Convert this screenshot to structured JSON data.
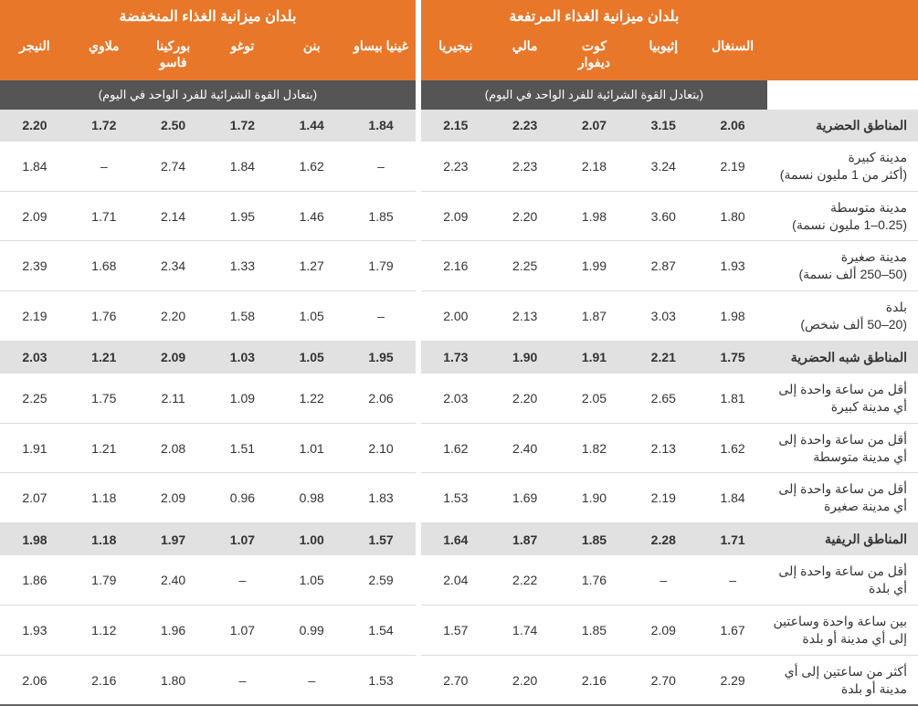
{
  "header": {
    "group_high": "بلدان ميزانية الغذاء المرتفعة",
    "group_low": "بلدان ميزانية الغذاء المنخفضة",
    "unit_label": "(بتعادل القوة الشرائية للفرد الواحد في اليوم)",
    "countries_high": [
      "السنغال",
      "إثيوبيا",
      "كوت ديفوار",
      "مالي",
      "نيجيريا"
    ],
    "countries_low": [
      "غينيا بيساو",
      "بنن",
      "توغو",
      "بوركينا فاسو",
      "ملاوي",
      "النيجر"
    ]
  },
  "sections": [
    {
      "label": "المناطق الحضرية",
      "high": [
        "2.06",
        "3.15",
        "2.07",
        "2.23",
        "2.15"
      ],
      "low": [
        "1.84",
        "1.44",
        "1.72",
        "2.50",
        "1.72",
        "2.20"
      ],
      "rows": [
        {
          "label": "مدينة كبيرة\n(أكثر من 1 مليون نسمة)",
          "high": [
            "2.19",
            "3.24",
            "2.18",
            "2.23",
            "2.23"
          ],
          "low": [
            "–",
            "1.62",
            "1.84",
            "2.74",
            "–",
            "1.84"
          ]
        },
        {
          "label": "مدينة متوسطة\n(0.25–1 مليون نسمة)",
          "high": [
            "1.80",
            "3.60",
            "1.98",
            "2.20",
            "2.09"
          ],
          "low": [
            "1.85",
            "1.46",
            "1.95",
            "2.14",
            "1.71",
            "2.09"
          ]
        },
        {
          "label": "مدينة صغيرة\n(50–250 ألف نسمة)",
          "high": [
            "1.93",
            "2.87",
            "1.99",
            "2.25",
            "2.16"
          ],
          "low": [
            "1.79",
            "1.27",
            "1.33",
            "2.34",
            "1.68",
            "2.39"
          ]
        },
        {
          "label": "بلدة\n(20–50 ألف شخص)",
          "high": [
            "1.98",
            "3.03",
            "1.87",
            "2.13",
            "2.00"
          ],
          "low": [
            "–",
            "1.05",
            "1.58",
            "2.20",
            "1.76",
            "2.19"
          ]
        }
      ]
    },
    {
      "label": "المناطق شبه الحضرية",
      "high": [
        "1.75",
        "2.21",
        "1.91",
        "1.90",
        "1.73"
      ],
      "low": [
        "1.95",
        "1.05",
        "1.03",
        "2.09",
        "1.21",
        "2.03"
      ],
      "rows": [
        {
          "label": "أقل من ساعة واحدة إلى أي مدينة كبيرة",
          "high": [
            "1.81",
            "2.65",
            "2.05",
            "2.20",
            "2.03"
          ],
          "low": [
            "2.06",
            "1.22",
            "1.09",
            "2.11",
            "1.75",
            "2.25"
          ]
        },
        {
          "label": "أقل من ساعة واحدة إلى أي مدينة متوسطة",
          "high": [
            "1.62",
            "2.13",
            "1.82",
            "2.40",
            "1.62"
          ],
          "low": [
            "2.10",
            "1.01",
            "1.51",
            "2.08",
            "1.21",
            "1.91"
          ]
        },
        {
          "label": "أقل من ساعة واحدة إلى أي مدينة صغيرة",
          "high": [
            "1.84",
            "2.19",
            "1.90",
            "1.69",
            "1.53"
          ],
          "low": [
            "1.83",
            "0.98",
            "0.96",
            "2.09",
            "1.18",
            "2.07"
          ]
        }
      ]
    },
    {
      "label": "المناطق الريفية",
      "high": [
        "1.71",
        "2.28",
        "1.85",
        "1.87",
        "1.64"
      ],
      "low": [
        "1.57",
        "1.00",
        "1.07",
        "1.97",
        "1.18",
        "1.98"
      ],
      "rows": [
        {
          "label": "أقل من ساعة واحدة إلى أي بلدة",
          "high": [
            "–",
            "–",
            "1.76",
            "2.22",
            "2.04"
          ],
          "low": [
            "2.59",
            "1.05",
            "–",
            "2.40",
            "1.79",
            "1.86"
          ]
        },
        {
          "label": "بين ساعة واحدة وساعتين إلى أي مدينة أو بلدة",
          "high": [
            "1.67",
            "2.09",
            "1.85",
            "1.74",
            "1.57"
          ],
          "low": [
            "1.54",
            "0.99",
            "1.07",
            "1.96",
            "1.12",
            "1.93"
          ]
        },
        {
          "label": "أكثر من ساعتين إلى أي مدينة أو بلدة",
          "high": [
            "2.29",
            "2.70",
            "2.16",
            "2.20",
            "2.70"
          ],
          "low": [
            "1.53",
            "–",
            "–",
            "1.80",
            "2.16",
            "2.06"
          ]
        }
      ]
    }
  ],
  "style": {
    "header_bg": "#e8772a",
    "header_fg": "#ffffff",
    "unit_bg": "#555555",
    "unit_fg": "#ffffff",
    "section_bg": "#e1e1e1",
    "row_border": "#dcdcdc",
    "text_color": "#333333",
    "font_size_body": 14,
    "font_size_header_group": 16,
    "font_size_unit": 13
  }
}
